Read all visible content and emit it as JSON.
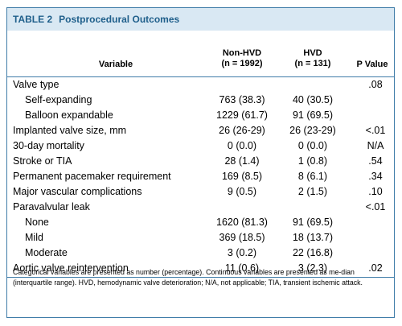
{
  "table": {
    "label": "TABLE 2",
    "title": "Postprocedural Outcomes",
    "headers": {
      "variable": "Variable",
      "non_hvd_line1": "Non-HVD",
      "non_hvd_line2": "(n = 1992)",
      "hvd_line1": "HVD",
      "hvd_line2": "(n = 131)",
      "p_value": "P Value"
    },
    "rows": [
      {
        "variable": "Valve type",
        "non_hvd": "",
        "hvd": "",
        "p": ".08"
      },
      {
        "variable": "Self-expanding",
        "non_hvd": "763 (38.3)",
        "hvd": "40 (30.5)",
        "p": ""
      },
      {
        "variable": "Balloon expandable",
        "non_hvd": "1229 (61.7)",
        "hvd": "91 (69.5)",
        "p": ""
      },
      {
        "variable": "Implanted valve size, mm",
        "non_hvd": "26 (26-29)",
        "hvd": "26 (23-29)",
        "p": "<.01"
      },
      {
        "variable": "30-day mortality",
        "non_hvd": "0 (0.0)",
        "hvd": "0 (0.0)",
        "p": "N/A"
      },
      {
        "variable": "Stroke or TIA",
        "non_hvd": "28 (1.4)",
        "hvd": "1 (0.8)",
        "p": ".54"
      },
      {
        "variable": "Permanent pacemaker requirement",
        "non_hvd": "169 (8.5)",
        "hvd": "8 (6.1)",
        "p": ".34"
      },
      {
        "variable": "Major vascular complications",
        "non_hvd": "9 (0.5)",
        "hvd": "2 (1.5)",
        "p": ".10"
      },
      {
        "variable": "Paravalvular leak",
        "non_hvd": "",
        "hvd": "",
        "p": "<.01"
      },
      {
        "variable": "None",
        "non_hvd": "1620 (81.3)",
        "hvd": "91 (69.5)",
        "p": ""
      },
      {
        "variable": "Mild",
        "non_hvd": "369 (18.5)",
        "hvd": "18 (13.7)",
        "p": ""
      },
      {
        "variable": "Moderate",
        "non_hvd": "3 (0.2)",
        "hvd": "22 (16.8)",
        "p": ""
      },
      {
        "variable": "Aortic valve reintervention",
        "non_hvd": "11 (0.6)",
        "hvd": "3 (2.3)",
        "p": ".02"
      }
    ],
    "footnote": "Categorical variables are presented as number (percentage). Continuous variables are presented as me-dian (interquartile range). HVD, hemodynamic valve deterioration; N/A, not applicable; TIA, transient ischemic attack."
  }
}
